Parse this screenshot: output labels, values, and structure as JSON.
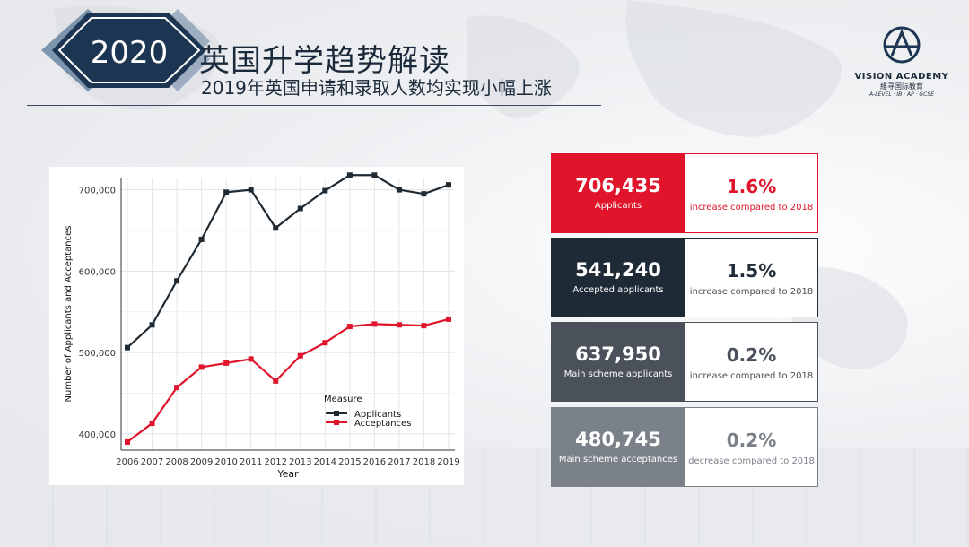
{
  "header": {
    "badge_year": "2020",
    "title": "英国升学趋势解读",
    "subtitle": "2019年英国申请和录取人数均实现小幅上涨"
  },
  "logo": {
    "name": "VISION ACADEMY",
    "cn_name": "維寻国际教育",
    "tagline": "A-LEVEL · IB · AP · GCSE"
  },
  "colors": {
    "applicants": "#1f2a33",
    "acceptances": "#e0142a",
    "navy": "#1c3552",
    "card1": "#e0142a",
    "card2": "#1e2a36",
    "card3": "#4a515a",
    "card4": "#7b8189"
  },
  "stats": [
    {
      "value": "706,435",
      "label": "Applicants",
      "pct": "1.6%",
      "desc": "increase compared to 2018"
    },
    {
      "value": "541,240",
      "label": "Accepted applicants",
      "pct": "1.5%",
      "desc": "increase compared to 2018"
    },
    {
      "value": "637,950",
      "label": "Main scheme applicants",
      "pct": "0.2%",
      "desc": "increase compared to 2018"
    },
    {
      "value": "480,745",
      "label": "Main scheme acceptances",
      "pct": "0.2%",
      "desc": "decrease compared to 2018"
    }
  ],
  "chart_data": {
    "type": "line",
    "xlabel": "Year",
    "ylabel": "Number of Applicants and Acceptances",
    "ylim": [
      380000,
      715000
    ],
    "y_ticks": [
      400000,
      500000,
      600000,
      700000
    ],
    "y_tick_labels": [
      "400,000",
      "500,000",
      "600,000",
      "700,000"
    ],
    "x": [
      "2006",
      "2007",
      "2008",
      "2009",
      "2010",
      "2011",
      "2012",
      "2013",
      "2014",
      "2015",
      "2016",
      "2017",
      "2018",
      "2019"
    ],
    "legend_title": "Measure",
    "legend_position": "inside-bottom-right",
    "grid": true,
    "series": [
      {
        "name": "Applicants",
        "color": "#1f2a33",
        "values": [
          506000,
          534000,
          588000,
          639000,
          697000,
          700000,
          653000,
          677000,
          699000,
          718000,
          718000,
          700000,
          695000,
          706000
        ]
      },
      {
        "name": "Acceptances",
        "color": "#e0142a",
        "values": [
          390000,
          413000,
          457000,
          482000,
          487000,
          492000,
          465000,
          496000,
          512000,
          532000,
          535000,
          534000,
          533000,
          541000
        ]
      }
    ]
  }
}
